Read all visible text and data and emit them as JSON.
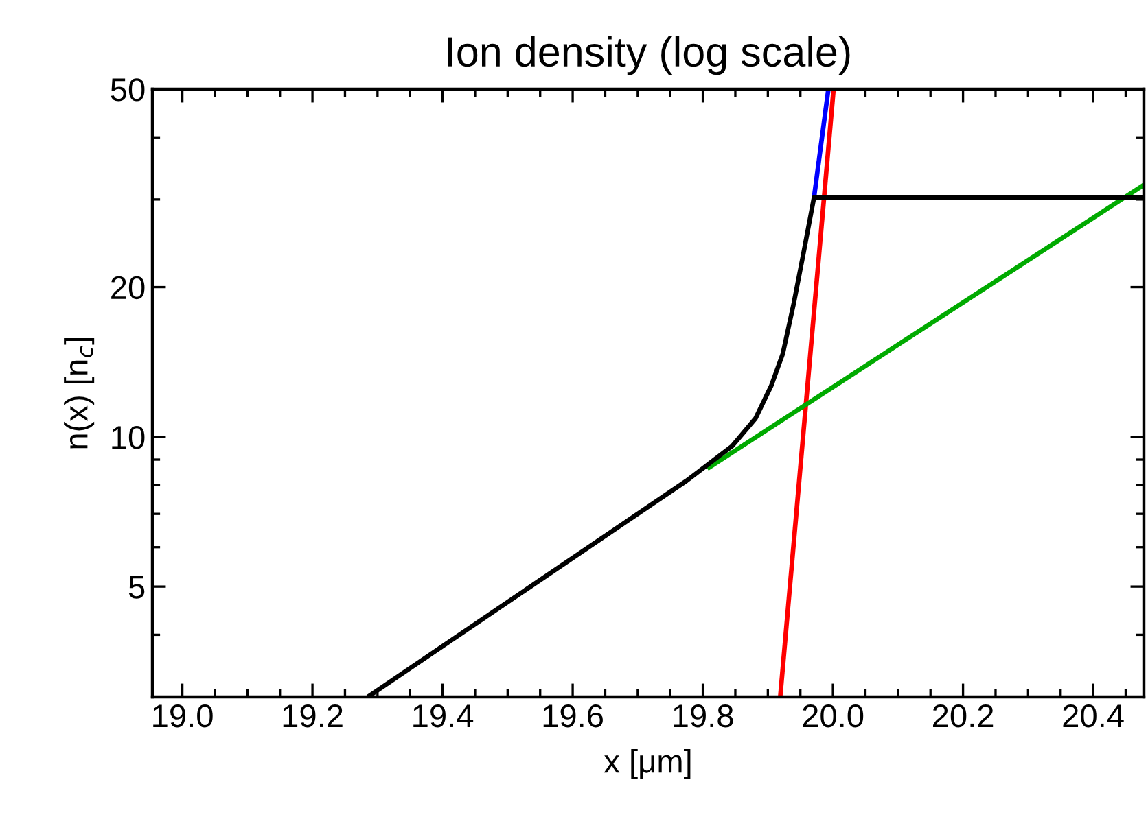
{
  "chart_data": {
    "type": "line",
    "title": "Ion density (log scale)",
    "xlabel": "x [μm]",
    "ylabel": "n(x) [n$_{c}$]",
    "series": [
      {
        "color": "#0000ff",
        "x": [
          19.971,
          19.993
        ],
        "values": [
          30.3,
          50
        ]
      },
      {
        "color": "#ff0000",
        "x": [
          19.919,
          20.001
        ],
        "values": [
          3.0,
          50
        ]
      },
      {
        "color": "#00aa00",
        "x": [
          19.807,
          20.478
        ],
        "values": [
          8.63,
          32.1
        ]
      },
      {
        "color": "#000000",
        "x": [
          19.285,
          19.775,
          19.845,
          19.881,
          19.905,
          19.923,
          19.94,
          19.955,
          19.971,
          20.478
        ],
        "values": [
          3.0,
          8.16,
          9.58,
          10.89,
          12.65,
          14.7,
          18.6,
          23.5,
          30.3,
          30.3
        ]
      }
    ],
    "xlim": [
      18.954,
      20.478
    ],
    "ylim": [
      3,
      50
    ],
    "log": "y",
    "xticks": [
      {
        "value": 19,
        "label": "19.0"
      },
      19.2,
      19.4,
      19.6,
      19.8,
      {
        "value": 20,
        "label": "20.0"
      },
      20.2,
      20.4
    ],
    "yticks": [
      5,
      10,
      20,
      50
    ],
    "grid": false,
    "legend": false,
    "marker": "none",
    "line_style": "solid"
  }
}
